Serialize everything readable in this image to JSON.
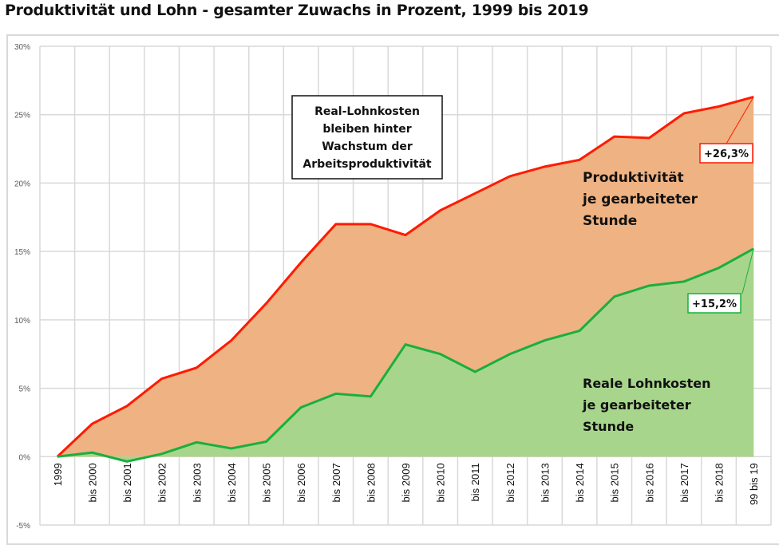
{
  "title": "Produktivität und Lohn - gesamter Zuwachs in Prozent, 1999 bis 2019",
  "chart_data": {
    "type": "area",
    "title": "Produktivität und Lohn - gesamter Zuwachs in Prozent, 1999 bis 2019",
    "categories": [
      "1999",
      "bis 2000",
      "bis 2001",
      "bis 2002",
      "bis 2003",
      "bis 2004",
      "bis 2005",
      "bis 2006",
      "bis 2007",
      "bis 2008",
      "bis 2009",
      "bis 2010",
      "bis 2011",
      "bis 2012",
      "bis 2013",
      "bis 2014",
      "bis 2015",
      "bis 2016",
      "bis 2017",
      "bis 2018",
      "99 bis 19"
    ],
    "series": [
      {
        "name": "Produktivität je gearbeiteter Stunde",
        "line_color": "#ff1a00",
        "fill_color": "#efb282",
        "values": [
          0,
          2.4,
          3.7,
          5.7,
          6.5,
          8.5,
          11.2,
          14.2,
          17.0,
          17.0,
          16.2,
          18.0,
          19.25,
          20.5,
          21.2,
          21.7,
          23.4,
          23.3,
          25.1,
          25.6,
          26.3
        ]
      },
      {
        "name": "Reale Lohnkosten je gearbeiteter Stunde",
        "line_color": "#1aaf3c",
        "fill_color": "#a8d58c",
        "values": [
          0,
          0.3,
          -0.35,
          0.2,
          1.05,
          0.6,
          1.1,
          3.6,
          4.6,
          4.4,
          8.2,
          7.5,
          6.2,
          7.5,
          8.5,
          9.2,
          11.7,
          12.5,
          12.8,
          13.8,
          15.2
        ]
      }
    ],
    "ylim": [
      -5,
      30
    ],
    "yticks": [
      "-5%",
      "0%",
      "5%",
      "10%",
      "15%",
      "20%",
      "25%",
      "30%"
    ],
    "ytick_values": [
      -5,
      0,
      5,
      10,
      15,
      20,
      25,
      30
    ],
    "grid": true,
    "annotations": {
      "box": [
        "Real-Lohnkosten",
        "bleiben hinter",
        "Wachstum der",
        "Arbeitsproduktivität"
      ],
      "prod_label": [
        "Produktivität",
        "je gearbeiteter",
        "Stunde"
      ],
      "wage_label": [
        "Reale Lohnkosten",
        "je gearbeiteter",
        "Stunde"
      ],
      "prod_end": "+26,3%",
      "wage_end": "+15,2%"
    }
  }
}
